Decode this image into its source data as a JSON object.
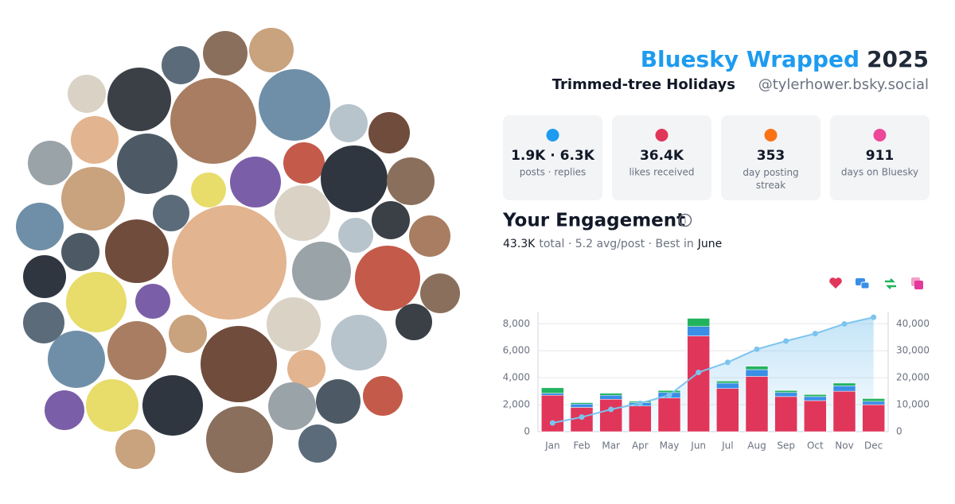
{
  "header": {
    "brand": "Bluesky Wrapped",
    "year": "2025",
    "theme": "Trimmed-tree Holidays",
    "handle": "@tylerhower.bsky.social"
  },
  "stats": [
    {
      "value": "1.9K · 6.3K",
      "label": "posts · replies"
    },
    {
      "value": "36.4K",
      "label": "likes received"
    },
    {
      "value": "353",
      "label": "day posting streak"
    },
    {
      "value": "911",
      "label": "days on Bluesky"
    }
  ],
  "engagement": {
    "title": "Your Engagement",
    "total": "43.3K",
    "summary": "total · 5.2 avg/post · Best in",
    "best_month": "June"
  },
  "chart_data": {
    "type": "bar",
    "stacked": true,
    "grid": true,
    "categories": [
      "Jan",
      "Feb",
      "Mar",
      "Apr",
      "May",
      "Jun",
      "Jul",
      "Aug",
      "Sep",
      "Oct",
      "Nov",
      "Dec"
    ],
    "series": [
      {
        "color": "#e0365a",
        "values": [
          2700,
          1800,
          2400,
          1900,
          2500,
          7100,
          3200,
          4100,
          2600,
          2300,
          3000,
          2000
        ]
      },
      {
        "color": "#3a8ee6",
        "values": [
          150,
          250,
          300,
          250,
          400,
          700,
          400,
          500,
          300,
          300,
          400,
          250
        ]
      },
      {
        "color": "#22b35e",
        "values": [
          400,
          100,
          150,
          100,
          150,
          600,
          150,
          250,
          150,
          150,
          200,
          200
        ]
      },
      {
        "type": "line",
        "axis": "y2",
        "color": "#7cc4ef",
        "values": [
          3250,
          5400,
          8250,
          10500,
          13550,
          21950,
          25700,
          30550,
          33600,
          36350,
          39950,
          42400
        ]
      }
    ],
    "ylim": [
      0,
      8900
    ],
    "yticks": [
      0,
      {
        "value": 2000,
        "label": "2,000"
      },
      {
        "value": 4000,
        "label": "4,000"
      },
      {
        "value": 6000,
        "label": "6,000"
      },
      {
        "value": 8000,
        "label": "8,000"
      }
    ],
    "y2lim": [
      0,
      44500
    ],
    "y2ticks": [
      0,
      {
        "value": 10000,
        "label": "10,000"
      },
      {
        "value": 20000,
        "label": "20,000"
      },
      {
        "value": 30000,
        "label": "30,000"
      },
      {
        "value": 40000,
        "label": "40,000"
      }
    ]
  }
}
